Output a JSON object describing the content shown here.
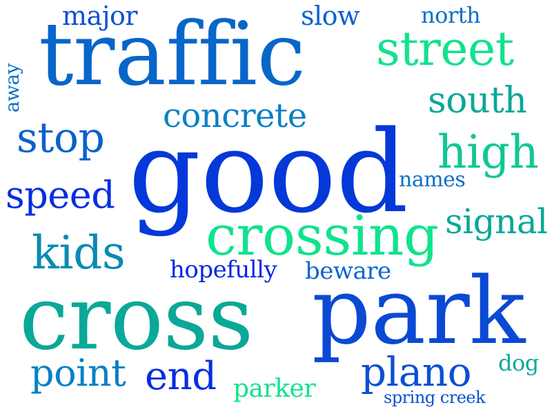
{
  "words": [
    {
      "text": "traffic",
      "color": "#0766c9"
    },
    {
      "text": "good",
      "color": "#0438d8"
    },
    {
      "text": "cross",
      "color": "#0aa898"
    },
    {
      "text": "park",
      "color": "#0a49d4"
    },
    {
      "text": "crossing",
      "color": "#10e38c"
    },
    {
      "text": "street",
      "color": "#10e38c"
    },
    {
      "text": "high",
      "color": "#10c894"
    },
    {
      "text": "south",
      "color": "#0aa898"
    },
    {
      "text": "concrete",
      "color": "#0a80c4"
    },
    {
      "text": "stop",
      "color": "#0a60cf"
    },
    {
      "text": "speed",
      "color": "#052ee0"
    },
    {
      "text": "kids",
      "color": "#0a8ab2"
    },
    {
      "text": "signal",
      "color": "#0aa898"
    },
    {
      "text": "plano",
      "color": "#0a50d2"
    },
    {
      "text": "point",
      "color": "#0a80c4"
    },
    {
      "text": "end",
      "color": "#052ee0"
    },
    {
      "text": "major",
      "color": "#0a50d2"
    },
    {
      "text": "slow",
      "color": "#0a60cf"
    },
    {
      "text": "north",
      "color": "#0a70c9"
    },
    {
      "text": "names",
      "color": "#0a70c9"
    },
    {
      "text": "hopefully",
      "color": "#0525e5"
    },
    {
      "text": "beware",
      "color": "#0a66cd"
    },
    {
      "text": "parker",
      "color": "#10e38c"
    },
    {
      "text": "spring creek",
      "color": "#0a50d2"
    },
    {
      "text": "dog",
      "color": "#0aa898"
    },
    {
      "text": "away",
      "color": "#0a70c9"
    }
  ]
}
